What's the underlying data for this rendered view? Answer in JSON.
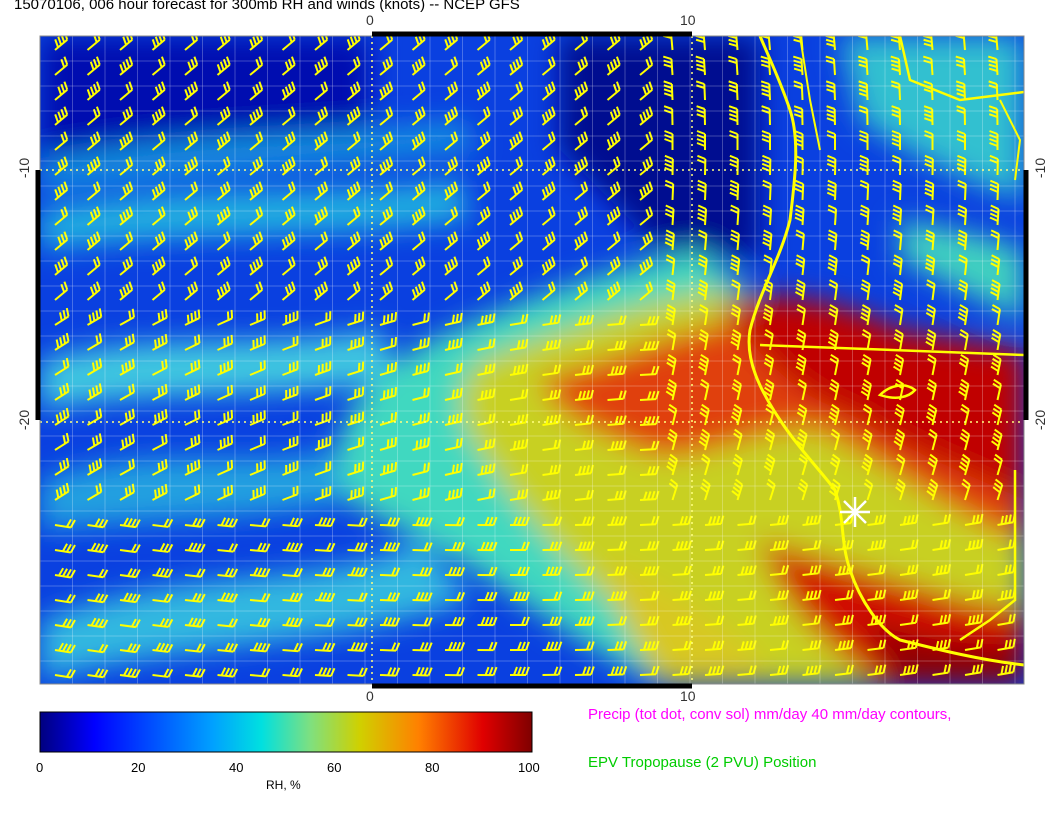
{
  "title": "15070106, 006 hour forecast for 300mb RH and winds (knots) -- NCEP GFS",
  "map": {
    "lon_ticks_top": [
      "0",
      "10"
    ],
    "lon_ticks_bottom": [
      "0",
      "10"
    ],
    "lat_ticks_left": [
      "-10",
      "-20"
    ],
    "lat_ticks_right": [
      "-10",
      "-20"
    ],
    "field": "300mb RH",
    "barb_color": "#ffff00",
    "coastline_color": "#ffff00",
    "marker": "white-star-icon"
  },
  "colorbar": {
    "label": "RH, %",
    "ticks": [
      "0",
      "20",
      "40",
      "60",
      "80",
      "100"
    ],
    "colors": [
      "#00007f",
      "#0000ff",
      "#007fff",
      "#00ffff",
      "#7fff7f",
      "#ffff00",
      "#ff7f00",
      "#ff0000",
      "#7f0000"
    ]
  },
  "legend": {
    "precip": "Precip (tot dot, conv sol) mm/day 40 mm/day contours,",
    "precip_color": "#ff00ff",
    "epv": "EPV Tropopause (2 PVU) Position",
    "epv_color": "#00cc00"
  }
}
